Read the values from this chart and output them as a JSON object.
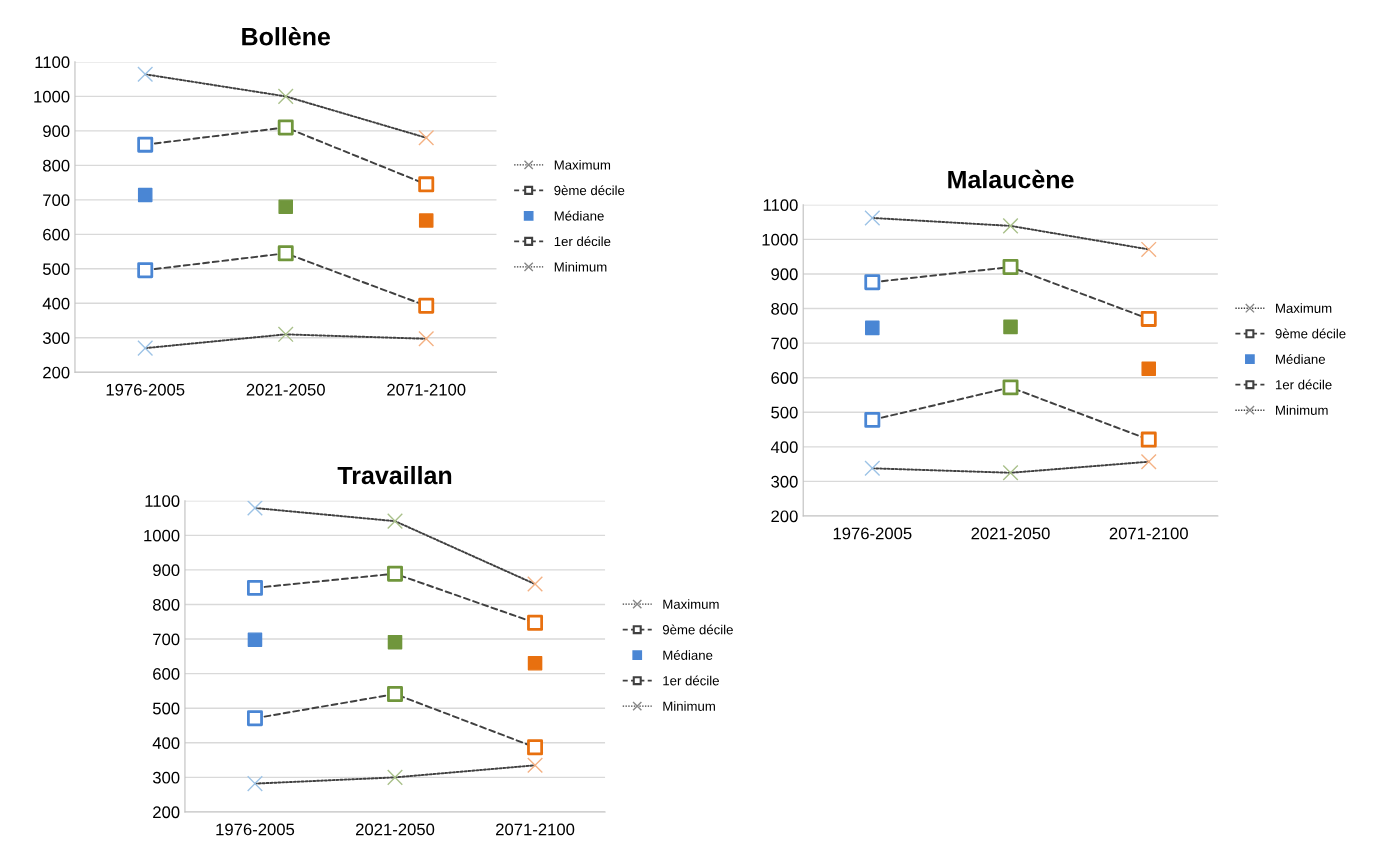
{
  "chart_data": [
    {
      "type": "line",
      "title": "Bollène",
      "categories": [
        "1976-2005",
        "2021-2050",
        "2071-2100"
      ],
      "ylim": [
        200,
        1100
      ],
      "yticks": [
        200,
        300,
        400,
        500,
        600,
        700,
        800,
        900,
        1000,
        1100
      ],
      "grid": "y",
      "legend": "right",
      "series": [
        {
          "name": "Maximum",
          "color": "#404040",
          "colors": [
            "#9dc3e6",
            "#a9c08a",
            "#f4b183"
          ],
          "marker": "cross",
          "line_style": "dotted",
          "values": [
            1064,
            1000,
            880
          ]
        },
        {
          "name": "9ème décile",
          "color": "#404040",
          "colors": [
            "#4a86d4",
            "#70963c",
            "#e8700f"
          ],
          "marker": "square",
          "line_style": "dashed",
          "values": [
            860,
            910,
            745
          ]
        },
        {
          "name": "Médiane",
          "color": "#4a86d4",
          "colors": [
            "#4a86d4",
            "#70963c",
            "#e8700f"
          ],
          "marker": "square",
          "type": "scatter",
          "values": [
            714,
            680,
            640
          ]
        },
        {
          "name": "1er décile",
          "color": "#404040",
          "colors": [
            "#4a86d4",
            "#70963c",
            "#e8700f"
          ],
          "marker": "square",
          "line_style": "dashed",
          "values": [
            496,
            545,
            393
          ]
        },
        {
          "name": "Minimum",
          "color": "#404040",
          "colors": [
            "#9dc3e6",
            "#a9c08a",
            "#f4b183"
          ],
          "marker": "cross",
          "line_style": "dotted",
          "values": [
            270,
            310,
            297
          ]
        }
      ]
    },
    {
      "type": "line",
      "title": "Malaucène",
      "categories": [
        "1976-2005",
        "2021-2050",
        "2071-2100"
      ],
      "ylim": [
        200,
        1100
      ],
      "yticks": [
        200,
        300,
        400,
        500,
        600,
        700,
        800,
        900,
        1000,
        1100
      ],
      "grid": "y",
      "legend": "right",
      "series": [
        {
          "name": "Maximum",
          "color": "#404040",
          "colors": [
            "#9dc3e6",
            "#a9c08a",
            "#f4b183"
          ],
          "marker": "cross",
          "line_style": "dotted",
          "values": [
            1062,
            1039,
            971
          ]
        },
        {
          "name": "9ème décile",
          "color": "#404040",
          "colors": [
            "#4a86d4",
            "#70963c",
            "#e8700f"
          ],
          "marker": "square",
          "line_style": "dashed",
          "values": [
            876,
            920,
            770
          ]
        },
        {
          "name": "Médiane",
          "color": "#4a86d4",
          "colors": [
            "#4a86d4",
            "#70963c",
            "#e8700f"
          ],
          "marker": "square",
          "type": "scatter",
          "values": [
            744,
            747,
            626
          ]
        },
        {
          "name": "1er décile",
          "color": "#404040",
          "colors": [
            "#4a86d4",
            "#70963c",
            "#e8700f"
          ],
          "marker": "square",
          "line_style": "dashed",
          "values": [
            478,
            572,
            421
          ]
        },
        {
          "name": "Minimum",
          "color": "#404040",
          "colors": [
            "#9dc3e6",
            "#a9c08a",
            "#f4b183"
          ],
          "marker": "cross",
          "line_style": "dotted",
          "values": [
            338,
            325,
            357
          ]
        }
      ]
    },
    {
      "type": "line",
      "title": "Travaillan",
      "categories": [
        "1976-2005",
        "2021-2050",
        "2071-2100"
      ],
      "ylim": [
        200,
        1100
      ],
      "yticks": [
        200,
        300,
        400,
        500,
        600,
        700,
        800,
        900,
        1000,
        1100
      ],
      "grid": "y",
      "legend": "right",
      "series": [
        {
          "name": "Maximum",
          "color": "#404040",
          "colors": [
            "#9dc3e6",
            "#a9c08a",
            "#f4b183"
          ],
          "marker": "cross",
          "line_style": "dotted",
          "values": [
            1079,
            1041,
            859
          ]
        },
        {
          "name": "9ème décile",
          "color": "#404040",
          "colors": [
            "#4a86d4",
            "#70963c",
            "#e8700f"
          ],
          "marker": "square",
          "line_style": "dashed",
          "values": [
            848,
            889,
            747
          ]
        },
        {
          "name": "Médiane",
          "color": "#4a86d4",
          "colors": [
            "#4a86d4",
            "#70963c",
            "#e8700f"
          ],
          "marker": "square",
          "type": "scatter",
          "values": [
            698,
            691,
            630
          ]
        },
        {
          "name": "1er décile",
          "color": "#404040",
          "colors": [
            "#4a86d4",
            "#70963c",
            "#e8700f"
          ],
          "marker": "square",
          "line_style": "dashed",
          "values": [
            471,
            541,
            387
          ]
        },
        {
          "name": "Minimum",
          "color": "#404040",
          "colors": [
            "#9dc3e6",
            "#a9c08a",
            "#f4b183"
          ],
          "marker": "cross",
          "line_style": "dotted",
          "values": [
            282,
            300,
            335
          ]
        }
      ]
    }
  ]
}
